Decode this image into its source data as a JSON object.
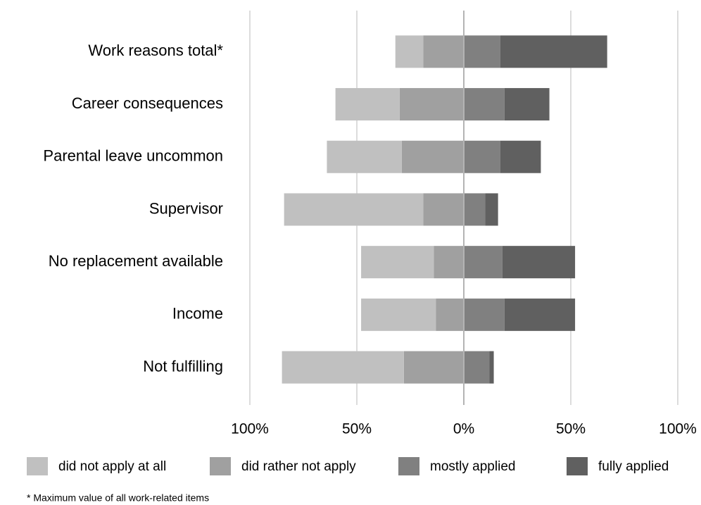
{
  "chart_data": {
    "type": "diverging-bar",
    "categories": [
      "Work reasons total*",
      "Career consequences",
      "Parental leave uncommon",
      "Supervisor",
      "No replacement available",
      "Income",
      "Not fulfilling"
    ],
    "series": [
      {
        "name": "did not apply at all",
        "color": "#c0c0c0",
        "values": [
          -13,
          -30,
          -35,
          -65,
          -34,
          -35,
          -57
        ]
      },
      {
        "name": "did rather not apply",
        "color": "#a0a0a0",
        "values": [
          -19,
          -30,
          -29,
          -19,
          -14,
          -13,
          -28
        ]
      },
      {
        "name": "mostly applied",
        "color": "#808080",
        "values": [
          17,
          19,
          17,
          10,
          18,
          19,
          12
        ]
      },
      {
        "name": "fully applied",
        "color": "#606060",
        "values": [
          50,
          21,
          19,
          6,
          34,
          33,
          2
        ]
      }
    ],
    "xlim": [
      -100,
      100
    ],
    "xticks": [
      {
        "value": -100,
        "label": "100%"
      },
      {
        "value": -50,
        "label": "50%"
      },
      {
        "value": 0,
        "label": "0%"
      },
      {
        "value": 50,
        "label": "50%"
      },
      {
        "value": 100,
        "label": "100%"
      }
    ],
    "grid": true,
    "note": "* Maximum value of all work-related items"
  }
}
